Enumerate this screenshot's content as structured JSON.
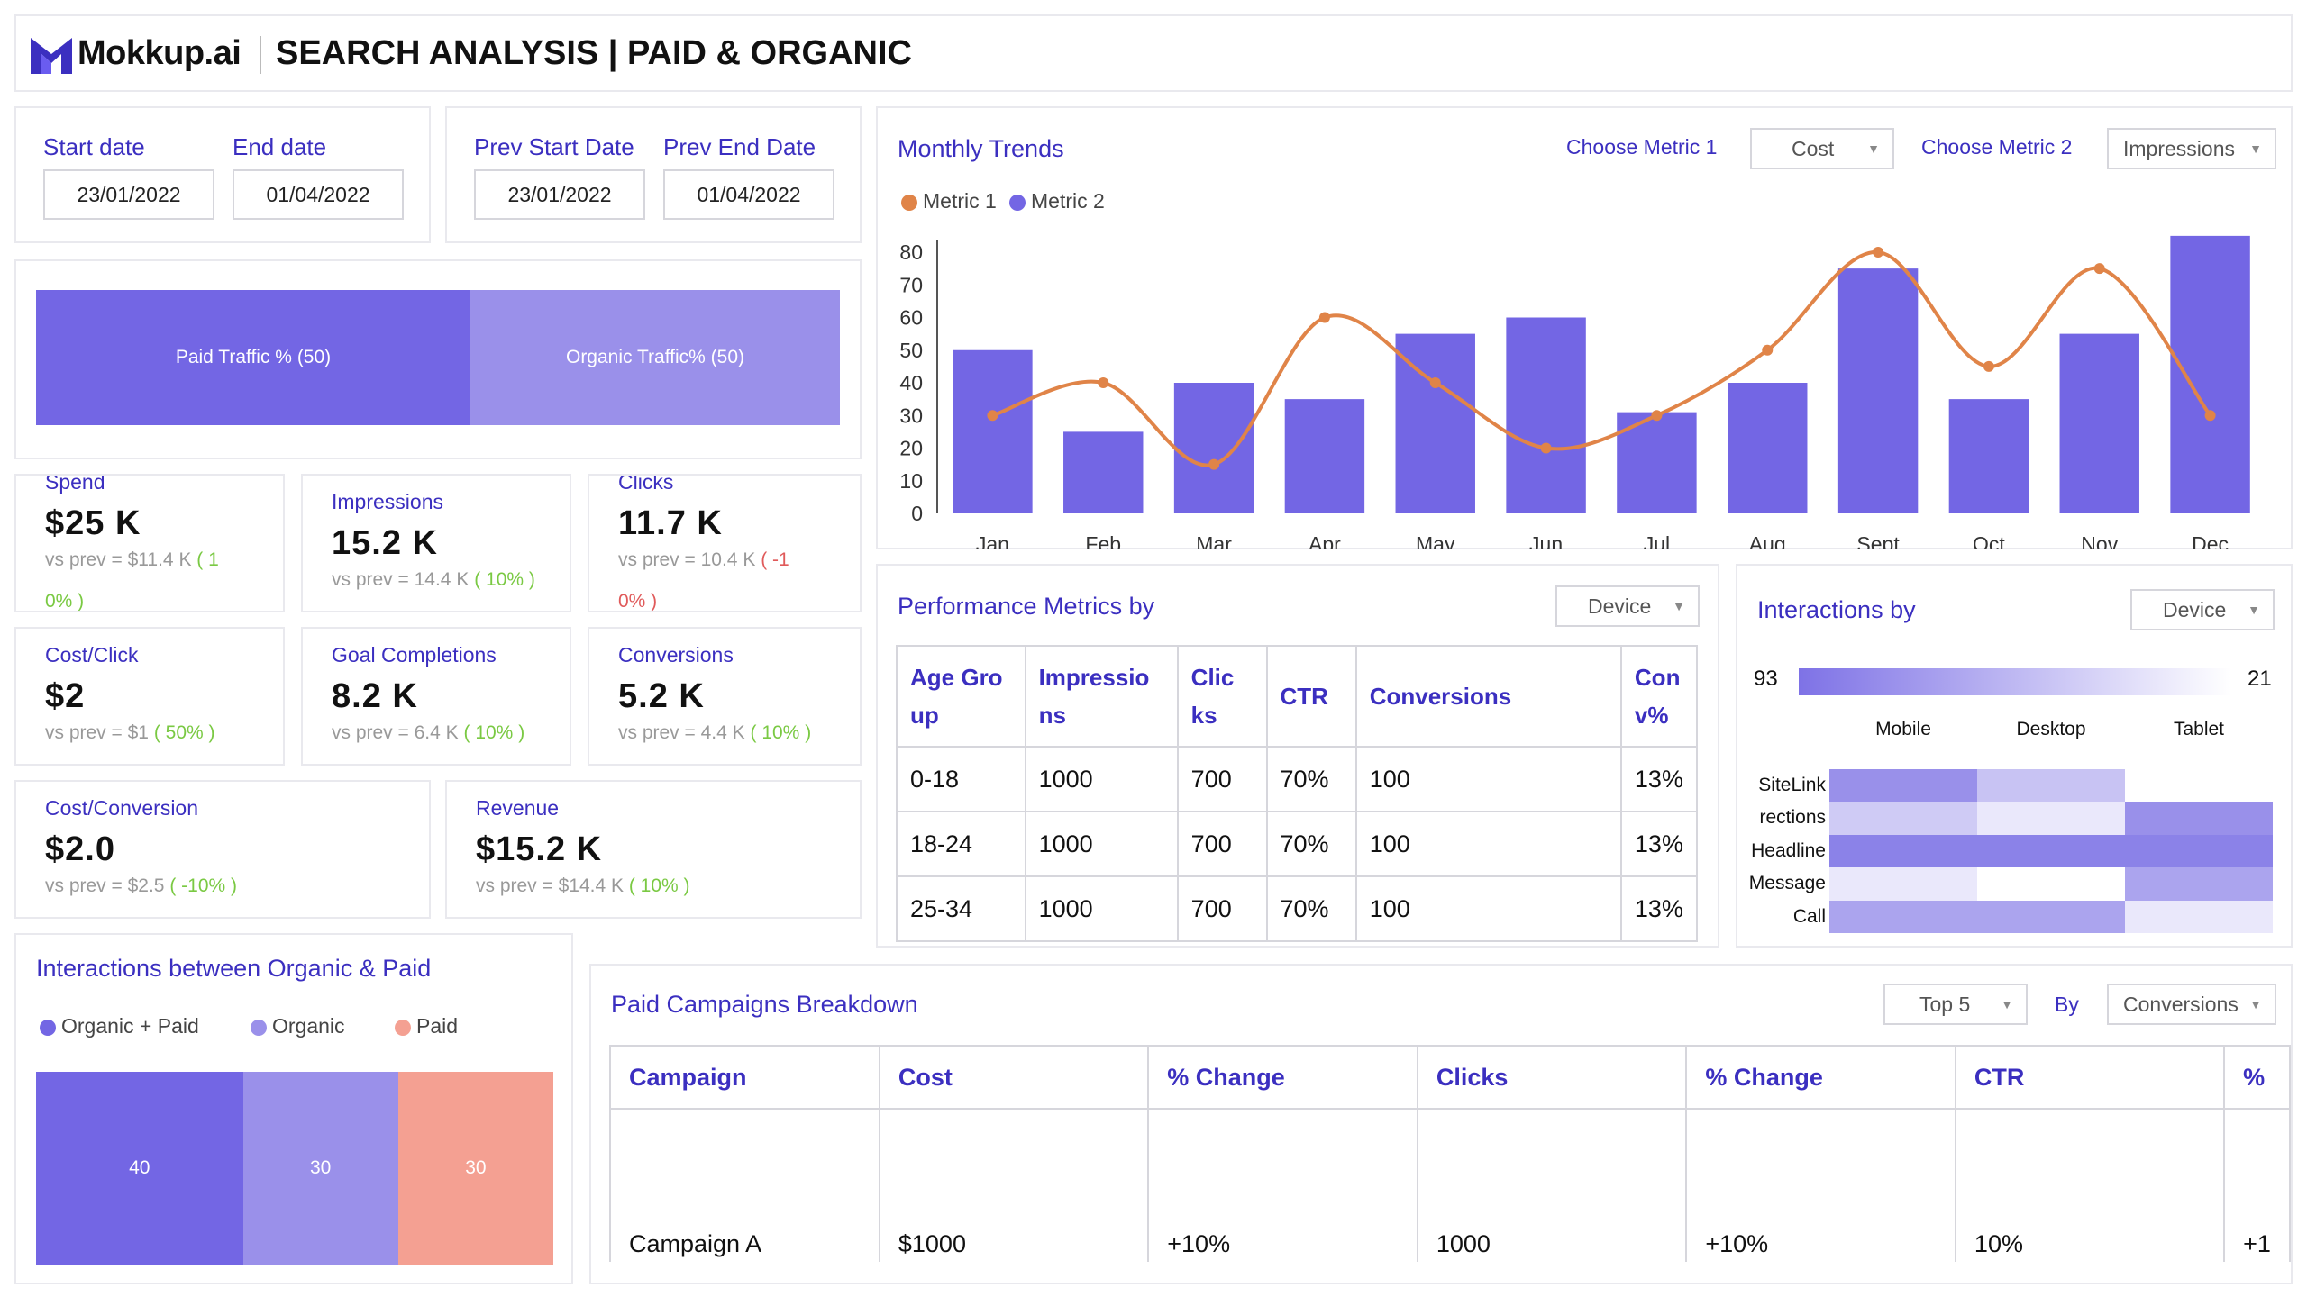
{
  "header": {
    "brand": "Mokkup.ai",
    "title": "SEARCH ANALYSIS | PAID & ORGANIC"
  },
  "dates": {
    "start_label": "Start date",
    "start_value": "23/01/2022",
    "end_label": "End date",
    "end_value": "01/04/2022",
    "prev_start_label": "Prev Start Date",
    "prev_start_value": "23/01/2022",
    "prev_end_label": "Prev End Date",
    "prev_end_value": "01/04/2022"
  },
  "traffic": {
    "paid_label": "Paid Traffic % (50)",
    "organic_label": "Organic Traffic% (50)",
    "paid_pct": 50,
    "organic_pct": 50
  },
  "kpis": {
    "spend": {
      "label": "Spend",
      "value": "$25 K",
      "prev": "vs prev = $11.4 K",
      "change_a": "( 1",
      "change_b": "0% )"
    },
    "impressions": {
      "label": "Impressions",
      "value": "15.2 K",
      "prev": "vs prev = 14.4 K",
      "change": "( 10% )"
    },
    "clicks": {
      "label": "Clicks",
      "value": "11.7 K",
      "prev": "vs prev = 10.4 K",
      "change_a": "( -1",
      "change_b": "0% )"
    },
    "cost_click": {
      "label": "Cost/Click",
      "value": "$2",
      "prev": "vs prev = $1",
      "change": "( 50% )"
    },
    "goal_completions": {
      "label": "Goal Completions",
      "value": "8.2 K",
      "prev": "vs prev = 6.4 K",
      "change": "( 10% )"
    },
    "conversions": {
      "label": "Conversions",
      "value": "5.2 K",
      "prev": "vs prev = 4.4 K",
      "change": "( 10% )"
    },
    "cost_conversion": {
      "label": "Cost/Conversion",
      "value": "$2.0",
      "prev": "vs prev = $2.5",
      "change": "( -10% )"
    },
    "revenue": {
      "label": "Revenue",
      "value": "$15.2 K",
      "prev": "vs prev = $14.4 K",
      "change": "( 10% )"
    }
  },
  "monthly_trends": {
    "title": "Monthly Trends",
    "metric1_label": "Choose Metric 1",
    "metric1_value": "Cost",
    "metric2_label": "Choose Metric 2",
    "metric2_value": "Impressions",
    "legend1": "Metric 1",
    "legend2": "Metric 2"
  },
  "chart_data": {
    "type": "bar",
    "categories": [
      "Jan",
      "Feb",
      "Mar",
      "Apr",
      "May",
      "Jun",
      "Jul",
      "Aug",
      "Sept",
      "Oct",
      "Nov",
      "Dec"
    ],
    "series": [
      {
        "name": "Metric 2",
        "type": "bar",
        "values": [
          50,
          25,
          40,
          35,
          55,
          60,
          31,
          40,
          75,
          35,
          55,
          85
        ]
      },
      {
        "name": "Metric 1",
        "type": "line",
        "values": [
          30,
          40,
          15,
          60,
          40,
          20,
          30,
          50,
          80,
          45,
          75,
          30
        ]
      }
    ],
    "ylim": [
      0,
      80
    ],
    "yticks": [
      0,
      10,
      20,
      30,
      40,
      50,
      60,
      70,
      80
    ],
    "colors": {
      "bar": "#7366e4",
      "line": "#e08448"
    }
  },
  "performance": {
    "title": "Performance Metrics by",
    "dropdown": "Device",
    "headers": [
      [
        "Age Gro",
        "up"
      ],
      [
        "Impressio",
        "ns"
      ],
      [
        "Clic",
        "ks"
      ],
      [
        "CTR",
        ""
      ],
      [
        "Conversions",
        ""
      ],
      [
        "Con",
        "v%"
      ]
    ],
    "rows": [
      [
        "0-18",
        "1000",
        "700",
        "70%",
        "100",
        "13%"
      ],
      [
        "18-24",
        "1000",
        "700",
        "70%",
        "100",
        "13%"
      ],
      [
        "25-34",
        "1000",
        "700",
        "70%",
        "100",
        "13%"
      ]
    ]
  },
  "interactions_by": {
    "title": "Interactions by",
    "dropdown": "Device",
    "scale_min": "93",
    "scale_max": "21",
    "columns": [
      "Mobile",
      "Desktop",
      "Tablet"
    ],
    "rows": [
      "SiteLink",
      "rections",
      "Headline",
      "Message",
      "Call"
    ],
    "colors": [
      [
        "#9990ea",
        "#c8c3f3",
        "#ffffff"
      ],
      [
        "#cfcbf5",
        "#eae8fb",
        "#9990ea"
      ],
      [
        "#8b82e8",
        "#8b82e8",
        "#8b82e8"
      ],
      [
        "#eae8fb",
        "#ffffff",
        "#aba4ee"
      ],
      [
        "#aba4ee",
        "#aba4ee",
        "#eae8fb"
      ]
    ]
  },
  "organic_paid": {
    "title": "Interactions between Organic & Paid",
    "legend": [
      "Organic + Paid",
      "Organic",
      "Paid"
    ],
    "values": [
      "40",
      "30",
      "30"
    ],
    "fractions": [
      0.4,
      0.3,
      0.3
    ],
    "colors": [
      "#7366e4",
      "#9a90ea",
      "#f4a092"
    ]
  },
  "campaigns": {
    "title": "Paid Campaigns Breakdown",
    "top_dropdown": "Top 5",
    "by_label": "By",
    "by_dropdown": "Conversions",
    "headers": [
      "Campaign",
      "Cost",
      "% Change",
      "Clicks",
      "% Change",
      "CTR",
      "%"
    ],
    "rows": [
      [
        "Campaign A",
        "$1000",
        "+10%",
        "1000",
        "+10%",
        "10%",
        "+1"
      ]
    ]
  }
}
